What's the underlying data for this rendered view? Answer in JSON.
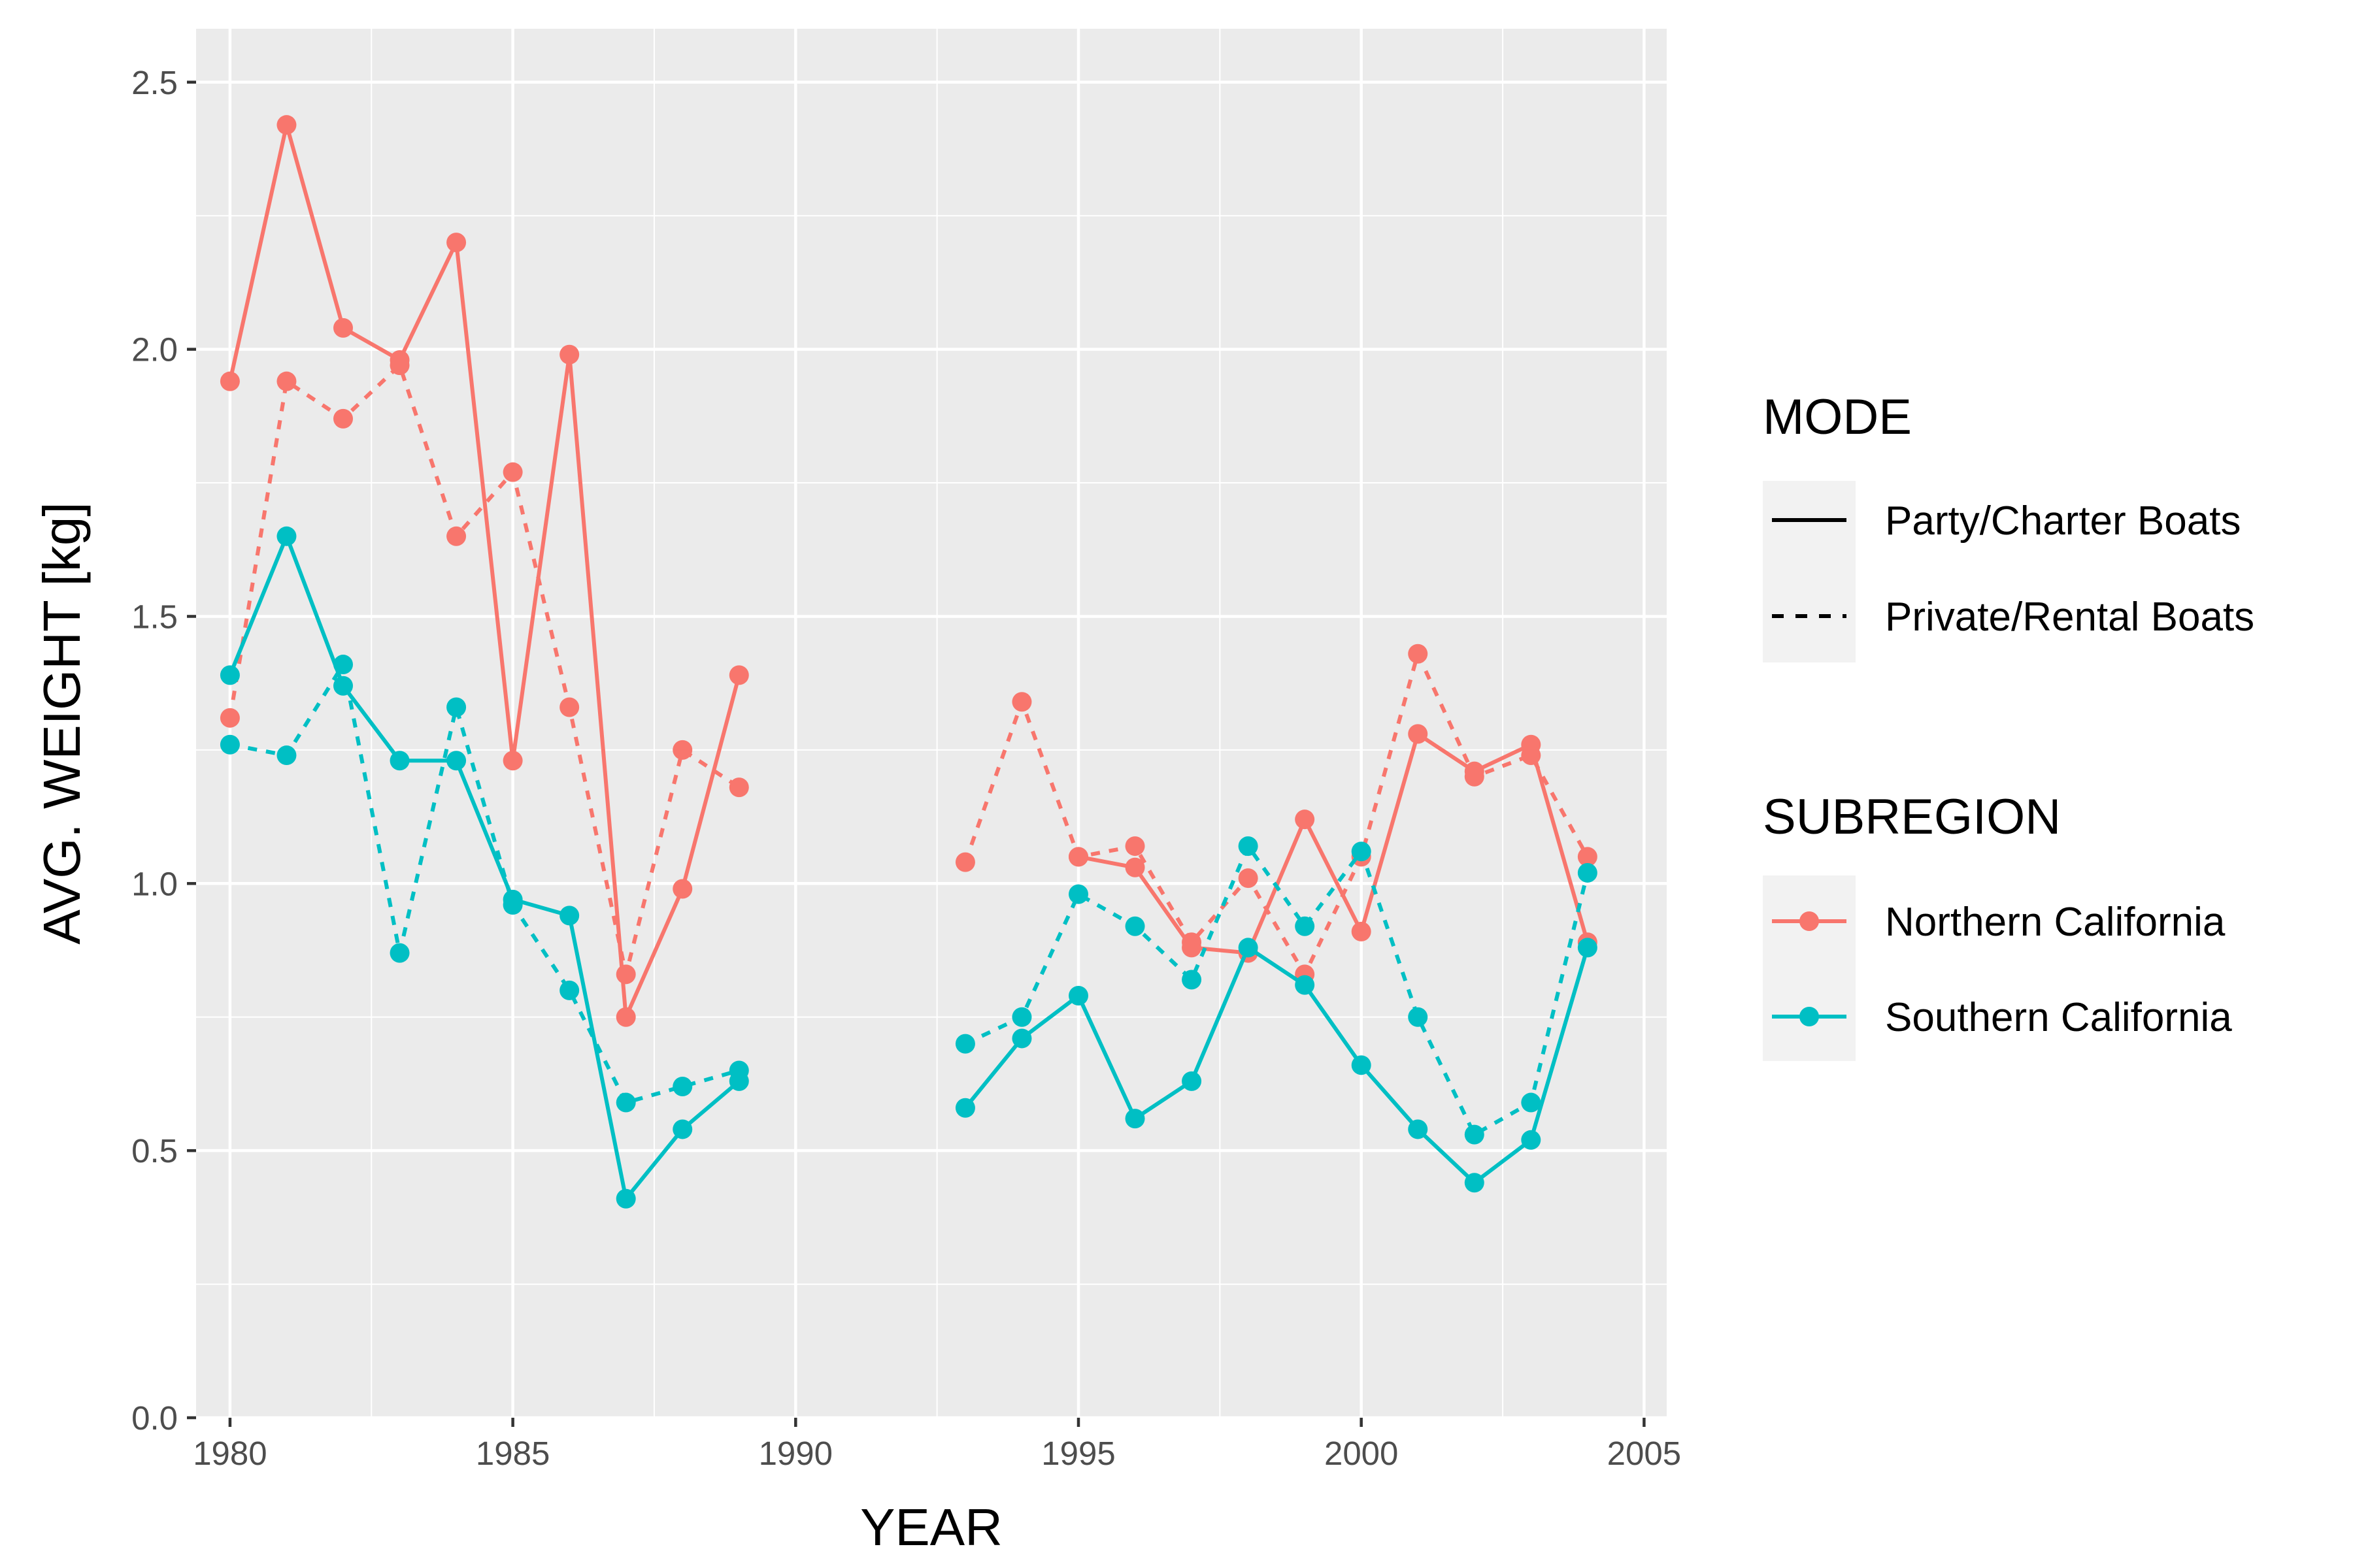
{
  "chart_data": {
    "type": "line",
    "xlabel": "YEAR",
    "ylabel": "AVG. WEIGHT [kg]",
    "xlim": [
      1979.4,
      2005.4
    ],
    "ylim": [
      0,
      2.6
    ],
    "x_ticks": [
      1980,
      1985,
      1990,
      1995,
      2000,
      2005
    ],
    "y_ticks": [
      0.0,
      0.5,
      1.0,
      1.5,
      2.0,
      2.5
    ],
    "x_tick_labels": [
      "1980",
      "1985",
      "1990",
      "1995",
      "2000",
      "2005"
    ],
    "y_tick_labels": [
      "0.0",
      "0.5",
      "1.0",
      "1.5",
      "2.0",
      "2.5"
    ],
    "grid": true,
    "legend_position": "right",
    "legend": {
      "mode": {
        "title": "MODE",
        "entries": [
          {
            "label": "Party/Charter Boats",
            "linetype": "solid"
          },
          {
            "label": "Private/Rental Boats",
            "linetype": "dashed"
          }
        ]
      },
      "subregion": {
        "title": "SUBREGION",
        "entries": [
          {
            "label": "Northern California",
            "color": "#F8766D"
          },
          {
            "label": "Southern California",
            "color": "#00BFC4"
          }
        ]
      }
    },
    "series": [
      {
        "subregion": "Northern California",
        "mode": "Party/Charter Boats",
        "color": "#F8766D",
        "linetype": "solid",
        "segments": [
          {
            "x": [
              1980,
              1981,
              1982,
              1983,
              1984,
              1985,
              1986,
              1987,
              1988,
              1989
            ],
            "y": [
              1.94,
              2.42,
              2.04,
              1.98,
              2.2,
              1.23,
              1.99,
              0.75,
              0.99,
              1.39
            ]
          },
          {
            "x": [
              1995,
              1996,
              1997,
              1998,
              1999,
              2000,
              2001,
              2002,
              2003,
              2004
            ],
            "y": [
              1.05,
              1.03,
              0.88,
              0.87,
              1.12,
              0.91,
              1.28,
              1.21,
              1.26,
              0.89
            ]
          }
        ]
      },
      {
        "subregion": "Northern California",
        "mode": "Private/Rental Boats",
        "color": "#F8766D",
        "linetype": "dashed",
        "segments": [
          {
            "x": [
              1980,
              1981,
              1982,
              1983,
              1984,
              1985,
              1986,
              1987,
              1988,
              1989
            ],
            "y": [
              1.31,
              1.94,
              1.87,
              1.97,
              1.65,
              1.77,
              1.33,
              0.83,
              1.25,
              1.18
            ]
          },
          {
            "x": [
              1993,
              1994,
              1995,
              1996,
              1997,
              1998,
              1999,
              2000,
              2001,
              2002,
              2003,
              2004
            ],
            "y": [
              1.04,
              1.34,
              1.05,
              1.07,
              0.89,
              1.01,
              0.83,
              1.05,
              1.43,
              1.2,
              1.24,
              1.05
            ]
          }
        ]
      },
      {
        "subregion": "Southern California",
        "mode": "Party/Charter Boats",
        "color": "#00BFC4",
        "linetype": "solid",
        "segments": [
          {
            "x": [
              1980,
              1981,
              1982,
              1983,
              1984,
              1985,
              1986,
              1987,
              1988,
              1989
            ],
            "y": [
              1.39,
              1.65,
              1.37,
              1.23,
              1.23,
              0.97,
              0.94,
              0.41,
              0.54,
              0.63
            ]
          },
          {
            "x": [
              1993,
              1994,
              1995,
              1996,
              1997,
              1998,
              1999,
              2000,
              2001,
              2002,
              2003,
              2004
            ],
            "y": [
              0.58,
              0.71,
              0.79,
              0.56,
              0.63,
              0.88,
              0.81,
              0.66,
              0.54,
              0.44,
              0.52,
              0.88
            ]
          }
        ]
      },
      {
        "subregion": "Southern California",
        "mode": "Private/Rental Boats",
        "color": "#00BFC4",
        "linetype": "dashed",
        "segments": [
          {
            "x": [
              1980,
              1981,
              1982,
              1983,
              1984,
              1985,
              1986,
              1987,
              1988,
              1989
            ],
            "y": [
              1.26,
              1.24,
              1.41,
              0.87,
              1.33,
              0.96,
              0.8,
              0.59,
              0.62,
              0.65
            ]
          },
          {
            "x": [
              1993,
              1994,
              1995,
              1996,
              1997,
              1998,
              1999,
              2000,
              2001,
              2002,
              2003,
              2004
            ],
            "y": [
              0.7,
              0.75,
              0.98,
              0.92,
              0.82,
              1.07,
              0.92,
              1.06,
              0.75,
              0.53,
              0.59,
              1.02
            ]
          }
        ]
      }
    ]
  }
}
